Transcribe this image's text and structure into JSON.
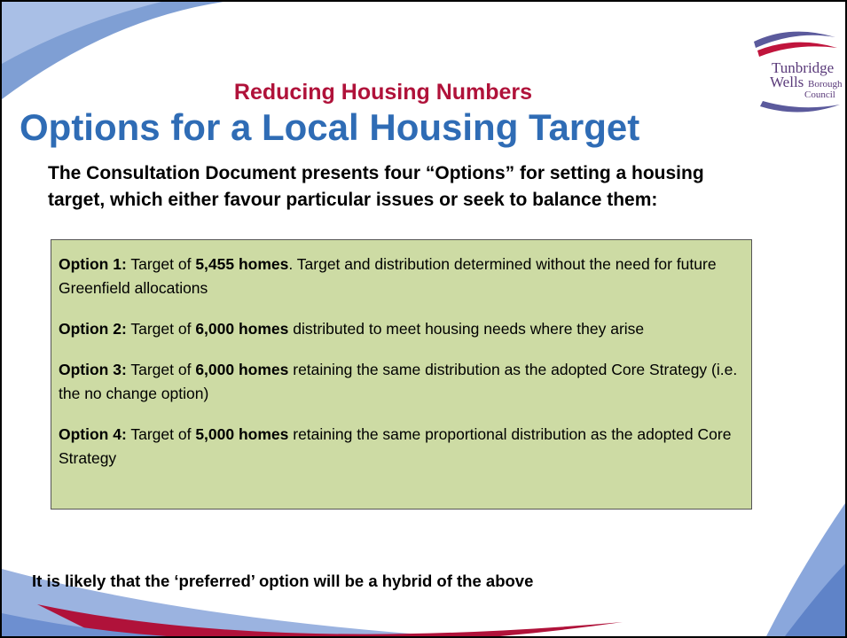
{
  "logo": {
    "line1": "Tunbridge",
    "line2": "Wells",
    "line3": "Borough",
    "line4": "Council"
  },
  "subtitle": "Reducing Housing Numbers",
  "title": "Options for a Local Housing Target",
  "intro": "The Consultation Document presents four “Options” for setting a housing target, which either favour particular issues or seek to balance them:",
  "options": [
    {
      "label": "Option 1:",
      "pre": " Target of ",
      "highlight": "5,455 homes",
      "post": ". Target and distribution determined without the need for future Greenfield allocations"
    },
    {
      "label": "Option 2:",
      "pre": " Target of ",
      "highlight": "6,000 homes",
      "post": " distributed to meet housing needs where they arise"
    },
    {
      "label": "Option 3:",
      "pre": " Target of ",
      "highlight": "6,000 homes",
      "post": " retaining the same distribution as the adopted Core Strategy (i.e. the no change option)"
    },
    {
      "label": "Option 4:",
      "pre": " Target of ",
      "highlight": "5,000 homes",
      "post": " retaining the same proportional distribution as the adopted Core Strategy"
    }
  ],
  "footer": "It is likely that the ‘preferred’ option will be a hybrid of the above"
}
